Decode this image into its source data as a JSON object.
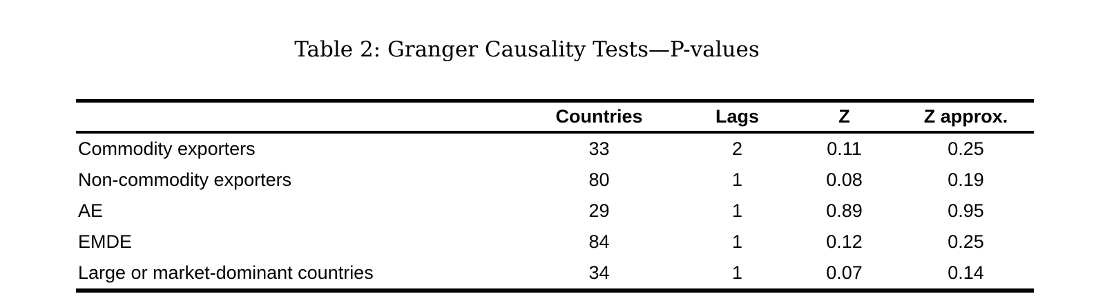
{
  "page": {
    "background": "#ffffff",
    "text_color": "#000000",
    "rule_color": "#000000"
  },
  "title": "Table 2: Granger Causality Tests—P-values",
  "table": {
    "columns": [
      {
        "key": "label",
        "label": ""
      },
      {
        "key": "countries",
        "label": "Countries"
      },
      {
        "key": "lags",
        "label": "Lags"
      },
      {
        "key": "z",
        "label": "Z"
      },
      {
        "key": "z_approx",
        "label": "Z approx."
      }
    ],
    "rows": [
      {
        "label": "Commodity exporters",
        "countries": "33",
        "lags": "2",
        "z": "0.11",
        "z_approx": "0.25"
      },
      {
        "label": "Non-commodity exporters",
        "countries": "80",
        "lags": "1",
        "z": "0.08",
        "z_approx": "0.19"
      },
      {
        "label": "AE",
        "countries": "29",
        "lags": "1",
        "z": "0.89",
        "z_approx": "0.95"
      },
      {
        "label": "EMDE",
        "countries": "84",
        "lags": "1",
        "z": "0.12",
        "z_approx": "0.25"
      },
      {
        "label": "Large or market-dominant countries",
        "countries": "34",
        "lags": "1",
        "z": "0.07",
        "z_approx": "0.14"
      }
    ]
  }
}
